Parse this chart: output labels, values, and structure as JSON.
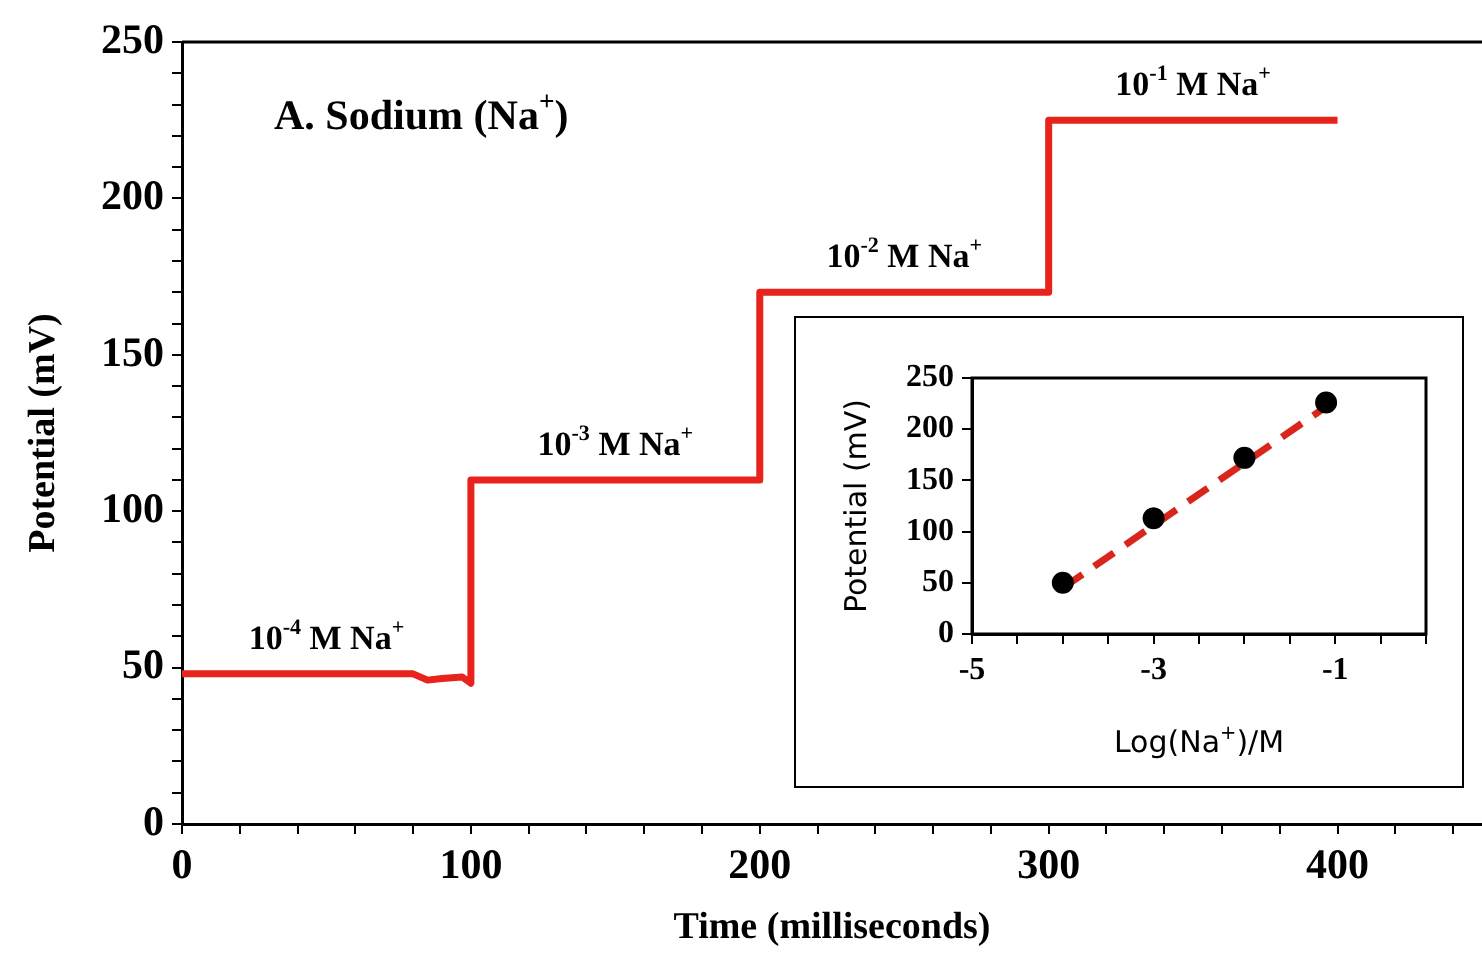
{
  "chart_data": [
    {
      "type": "line",
      "title": "A. Sodium (Na$^{+}$)",
      "xlabel": "Time (milliseconds)",
      "ylabel": "Potential (mV)",
      "series": [
        {
          "color": "#e8231b",
          "x": [
            0,
            80,
            85,
            90,
            97,
            100,
            100,
            200,
            200,
            300,
            300,
            400
          ],
          "values": [
            48,
            48,
            46,
            46.5,
            47,
            45,
            110,
            110,
            170,
            170,
            225,
            225
          ]
        }
      ],
      "xlim": [
        0,
        450
      ],
      "xticks": [
        0,
        {
          "value": 20,
          "label": null
        },
        {
          "value": 40,
          "label": null
        },
        {
          "value": 60,
          "label": null
        },
        {
          "value": 80,
          "label": null
        },
        100,
        {
          "value": 120,
          "label": null
        },
        {
          "value": 140,
          "label": null
        },
        {
          "value": 160,
          "label": null
        },
        {
          "value": 180,
          "label": null
        },
        200,
        {
          "value": 220,
          "label": null
        },
        {
          "value": 240,
          "label": null
        },
        {
          "value": 260,
          "label": null
        },
        {
          "value": 280,
          "label": null
        },
        300,
        {
          "value": 320,
          "label": null
        },
        {
          "value": 340,
          "label": null
        },
        {
          "value": 360,
          "label": null
        },
        {
          "value": 380,
          "label": null
        },
        400,
        {
          "value": 420,
          "label": null
        },
        {
          "value": 440,
          "label": null
        }
      ],
      "ylim": [
        0,
        250
      ],
      "yticks": [
        0,
        {
          "value": 10,
          "label": null
        },
        {
          "value": 20,
          "label": null
        },
        {
          "value": 30,
          "label": null
        },
        {
          "value": 40,
          "label": null
        },
        50,
        {
          "value": 60,
          "label": null
        },
        {
          "value": 70,
          "label": null
        },
        {
          "value": 80,
          "label": null
        },
        {
          "value": 90,
          "label": null
        },
        100,
        {
          "value": 110,
          "label": null
        },
        {
          "value": 120,
          "label": null
        },
        {
          "value": 130,
          "label": null
        },
        {
          "value": 140,
          "label": null
        },
        150,
        {
          "value": 160,
          "label": null
        },
        {
          "value": 170,
          "label": null
        },
        {
          "value": 180,
          "label": null
        },
        {
          "value": 190,
          "label": null
        },
        200,
        {
          "value": 210,
          "label": null
        },
        {
          "value": 220,
          "label": null
        },
        {
          "value": 230,
          "label": null
        },
        {
          "value": 240,
          "label": null
        },
        250
      ],
      "annotations": [
        {
          "text": "10$^{-4}$ M Na$^{+}$",
          "x": 50,
          "y": 48
        },
        {
          "text": "10$^{-3}$ M Na$^{+}$",
          "x": 150,
          "y": 110
        },
        {
          "text": "10$^{-2}$ M Na$^{+}$",
          "x": 250,
          "y": 170
        },
        {
          "text": "10$^{-1}$ M Na$^{+}$",
          "x": 350,
          "y": 225
        }
      ],
      "grid": false,
      "legend": false
    },
    {
      "type": "scatter",
      "xlabel": "Log(Na$^{+}$)/M",
      "ylabel": "Potential (mV)",
      "series": [
        {
          "color": "#000000",
          "x": [
            -4,
            -3,
            -2,
            -1.1
          ],
          "values": [
            50,
            113,
            172,
            226
          ],
          "marker": "circle"
        },
        {
          "type": "line",
          "color": "#d9261c",
          "x": [
            -4,
            -1.1
          ],
          "values": [
            45,
            222
          ],
          "line_style": "dashed"
        }
      ],
      "xlim": [
        -5,
        0
      ],
      "xticks": [
        -5,
        {
          "value": -4.5,
          "label": null
        },
        {
          "value": -4,
          "label": null
        },
        {
          "value": -3.5,
          "label": null
        },
        -3,
        {
          "value": -2.5,
          "label": null
        },
        {
          "value": -2,
          "label": null
        },
        {
          "value": -1.5,
          "label": null
        },
        -1,
        {
          "value": -0.5,
          "label": null
        },
        {
          "value": 0,
          "label": null
        }
      ],
      "ylim": [
        0,
        250
      ],
      "yticks": [
        0,
        50,
        100,
        150,
        200,
        250
      ],
      "grid": false,
      "legend": false
    }
  ]
}
